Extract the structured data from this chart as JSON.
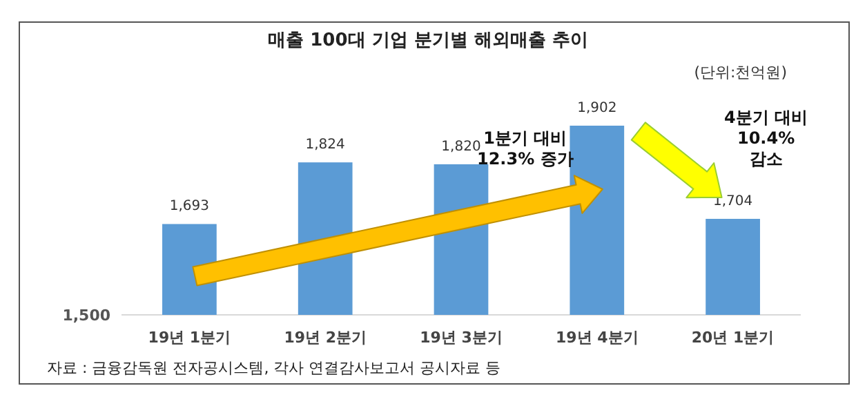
{
  "chart_data": {
    "type": "bar",
    "title": "매출 100대 기업 분기별 해외매출 추이",
    "categories": [
      "19년 1분기",
      "19년 2분기",
      "19년 3분기",
      "19년 4분기",
      "20년 1분기"
    ],
    "values": [
      1693,
      1824,
      1820,
      1902,
      1704
    ],
    "color": "#5b9bd5",
    "ylim": [
      1500,
      1902
    ],
    "value_labels": [
      "1,693",
      "1,824",
      "1,820",
      "1,902",
      "1,704"
    ],
    "annotations": [
      "1,500",
      "(단위:천억원)",
      "1분기 대비\n12.3% 증가",
      "4분기 대비\n10.4%\n감소",
      "자료 : 금융감독원 전자공시스템, 각사 연결감사보고서 공시자료 등"
    ]
  }
}
